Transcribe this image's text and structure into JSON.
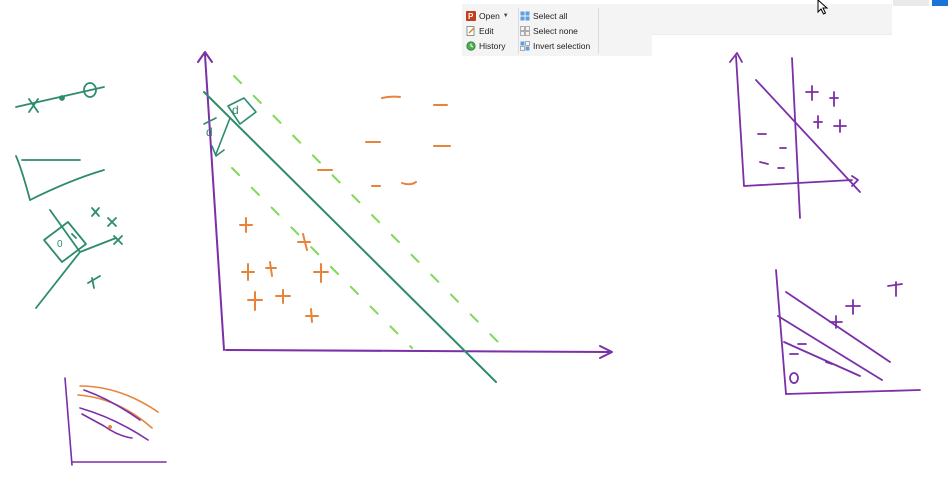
{
  "ribbon": {
    "open": {
      "label": "Open",
      "icon": "powerpoint-icon"
    },
    "edit": {
      "label": "Edit",
      "icon": "edit-icon"
    },
    "history": {
      "label": "History",
      "icon": "history-icon"
    },
    "select_all": {
      "label": "Select all",
      "icon": "select-all-icon"
    },
    "select_none": {
      "label": "Select none",
      "icon": "select-none-icon"
    },
    "invert_selection": {
      "label": "Invert selection",
      "icon": "invert-selection-icon"
    }
  },
  "whiteboard": {
    "colors": {
      "green": "#2e8b6e",
      "light_green": "#7ed957",
      "orange": "#e8843a",
      "purple": "#7b2fa8"
    },
    "main_plot": {
      "boundary_label": "d",
      "margin_label": "d",
      "positive_symbol": "+",
      "negative_symbol": "–"
    }
  },
  "window": {
    "accent": "#1a73d9"
  }
}
